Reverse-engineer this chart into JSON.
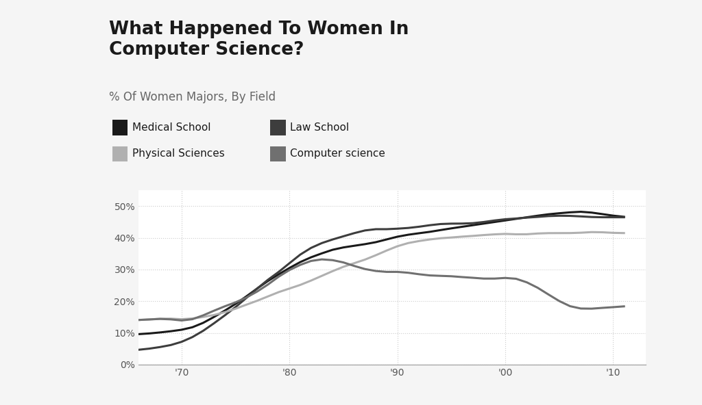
{
  "title": "What Happened To Women In\nComputer Science?",
  "subtitle": "% Of Women Majors, By Field",
  "background_color": "#f5f5f5",
  "plot_background_color": "#ffffff",
  "title_fontsize": 19,
  "subtitle_fontsize": 12,
  "years": [
    1966,
    1967,
    1968,
    1969,
    1970,
    1971,
    1972,
    1973,
    1974,
    1975,
    1976,
    1977,
    1978,
    1979,
    1980,
    1981,
    1982,
    1983,
    1984,
    1985,
    1986,
    1987,
    1988,
    1989,
    1990,
    1991,
    1992,
    1993,
    1994,
    1995,
    1996,
    1997,
    1998,
    1999,
    2000,
    2001,
    2002,
    2003,
    2004,
    2005,
    2006,
    2007,
    2008,
    2009,
    2010,
    2011
  ],
  "medical_school": [
    9.5,
    9.8,
    10.1,
    10.5,
    10.9,
    11.5,
    13.0,
    15.0,
    17.0,
    19.0,
    21.5,
    24.0,
    26.5,
    28.5,
    30.5,
    32.5,
    34.0,
    35.0,
    36.5,
    37.0,
    37.5,
    38.0,
    38.5,
    39.5,
    40.5,
    41.0,
    41.5,
    41.8,
    42.5,
    43.0,
    43.5,
    44.0,
    44.5,
    45.0,
    45.5,
    46.0,
    46.5,
    47.0,
    47.5,
    47.8,
    48.0,
    48.5,
    48.0,
    47.5,
    47.0,
    46.5
  ],
  "law_school": [
    4.5,
    5.0,
    5.5,
    6.0,
    7.0,
    8.5,
    10.5,
    13.0,
    15.5,
    18.0,
    21.0,
    24.0,
    27.0,
    29.0,
    32.0,
    35.0,
    37.0,
    38.5,
    39.5,
    40.5,
    41.5,
    42.5,
    43.0,
    42.5,
    43.0,
    43.0,
    43.5,
    44.0,
    44.5,
    44.5,
    44.5,
    44.5,
    45.0,
    45.5,
    46.0,
    46.0,
    46.5,
    46.5,
    47.0,
    47.0,
    47.0,
    46.8,
    46.5,
    46.5,
    46.5,
    46.5
  ],
  "physical_sciences": [
    14.0,
    14.2,
    14.5,
    14.7,
    14.0,
    14.5,
    15.0,
    15.5,
    16.5,
    17.5,
    19.0,
    20.0,
    21.5,
    23.0,
    24.0,
    25.0,
    26.5,
    28.0,
    29.5,
    31.0,
    32.0,
    33.0,
    34.5,
    36.0,
    37.5,
    38.5,
    39.0,
    39.5,
    40.0,
    40.0,
    40.5,
    40.5,
    41.0,
    41.0,
    41.5,
    41.0,
    41.0,
    41.5,
    41.5,
    41.5,
    41.5,
    41.5,
    42.0,
    41.8,
    41.5,
    41.5
  ],
  "computer_science": [
    14.0,
    14.2,
    14.5,
    14.5,
    13.5,
    14.0,
    15.5,
    17.0,
    18.5,
    19.5,
    21.0,
    23.0,
    25.0,
    28.0,
    30.0,
    31.5,
    33.0,
    33.5,
    33.0,
    32.5,
    31.0,
    30.0,
    29.5,
    29.0,
    29.5,
    29.0,
    28.5,
    28.0,
    28.0,
    28.0,
    27.5,
    27.5,
    27.0,
    27.0,
    27.5,
    27.5,
    26.0,
    24.5,
    22.0,
    20.0,
    18.0,
    17.5,
    17.5,
    18.0,
    18.0,
    18.5
  ],
  "medical_color": "#1a1a1a",
  "law_color": "#3d3d3d",
  "physical_color": "#b0b0b0",
  "cs_color": "#707070",
  "ylim": [
    0,
    55
  ],
  "yticks": [
    0,
    10,
    20,
    30,
    40,
    50
  ],
  "ytick_labels": [
    "0%",
    "10%",
    "20%",
    "30%",
    "40%",
    "50%"
  ],
  "xtick_labels": [
    "'70",
    "'80",
    "'90",
    "'00",
    "'10"
  ],
  "xtick_positions": [
    1970,
    1980,
    1990,
    2000,
    2010
  ],
  "grid_color": "#cccccc",
  "line_width": 2.2,
  "legend_items": [
    {
      "color": "#1a1a1a",
      "label": "Medical School"
    },
    {
      "color": "#3d3d3d",
      "label": "Law School"
    },
    {
      "color": "#b0b0b0",
      "label": "Physical Sciences"
    },
    {
      "color": "#707070",
      "label": "Computer science"
    }
  ]
}
